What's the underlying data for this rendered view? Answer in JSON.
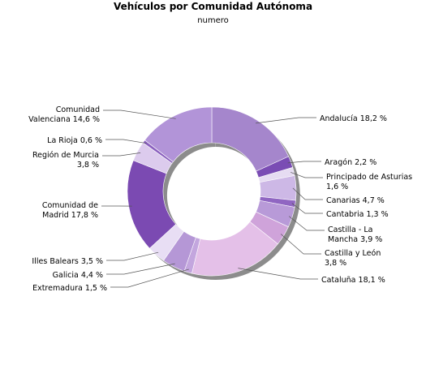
{
  "chart_data": {
    "type": "pie",
    "title": "Vehículos por Comunidad Autónoma",
    "subtitle": "numero",
    "slices": [
      {
        "name": "Andalucía",
        "value": 18.2,
        "label": "Andalucía 18,2 %",
        "color": "#a586cc"
      },
      {
        "name": "Aragón",
        "value": 2.2,
        "label": "Aragón 2,2 %",
        "color": "#7a4cb4"
      },
      {
        "name": "Principado de Asturias",
        "value": 1.6,
        "label": "Principado de Asturias 1,6 %",
        "color": "#e6dcf2"
      },
      {
        "name": "Canarias",
        "value": 4.7,
        "label": "Canarias 4,7 %",
        "color": "#cdb8e6"
      },
      {
        "name": "Cantabria",
        "value": 1.3,
        "label": "Cantabria 1,3 %",
        "color": "#9066c2"
      },
      {
        "name": "Castilla - La Mancha",
        "value": 3.9,
        "label": "Castilla - La Mancha 3,9 %",
        "color": "#b89ad8"
      },
      {
        "name": "Castilla y León",
        "value": 3.8,
        "label": "Castilla y León 3,8 %",
        "color": "#cfa3da"
      },
      {
        "name": "Cataluña",
        "value": 18.1,
        "label": "Cataluña 18,1 %",
        "color": "#e4c0e8"
      },
      {
        "name": "Extremadura",
        "value": 1.5,
        "label": "Extremadura 1,5 %",
        "color": "#c3a6de"
      },
      {
        "name": "Galicia",
        "value": 4.4,
        "label": "Galicia 4,4 %",
        "color": "#b597d6"
      },
      {
        "name": "Illes Balears",
        "value": 3.5,
        "label": "Illes Balears 3,5 %",
        "color": "#e8def4"
      },
      {
        "name": "Comunidad de Madrid",
        "value": 17.8,
        "label": "Comunidad de Madrid 17,8 %",
        "color": "#7b4ab2"
      },
      {
        "name": "Región de Murcia",
        "value": 3.8,
        "label": "Región de Murcia 3,8 %",
        "color": "#dccbed"
      },
      {
        "name": "La Rioja",
        "value": 0.6,
        "label": "La Rioja 0,6 %",
        "color": "#8a5fbe"
      },
      {
        "name": "Comunidad Valenciana",
        "value": 14.6,
        "label": "Comunidad Valenciana 14,6 %",
        "color": "#b294d8"
      }
    ]
  }
}
